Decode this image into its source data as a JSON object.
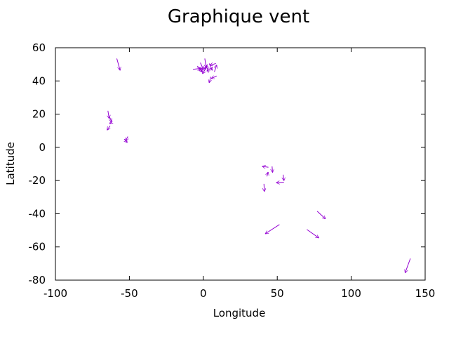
{
  "chart_data": {
    "type": "vector-field",
    "title": "Graphique vent",
    "xlabel": "Longitude",
    "ylabel": "Latitude",
    "xlim": [
      -100,
      150
    ],
    "ylim": [
      -80,
      60
    ],
    "xticks": [
      -100,
      -50,
      0,
      50,
      100,
      150
    ],
    "yticks": [
      -80,
      -60,
      -40,
      -20,
      0,
      20,
      40,
      60
    ],
    "legend": "none",
    "grid": false,
    "vector_color": "#9400d3",
    "vectors": [
      {
        "x": -58.5,
        "y": 53.5,
        "dx": 2.2,
        "dy": -7.0
      },
      {
        "x": -64.5,
        "y": 22.0,
        "dx": 0.8,
        "dy": -4.5
      },
      {
        "x": -63.5,
        "y": 18.5,
        "dx": 1.5,
        "dy": -3.0
      },
      {
        "x": -61.5,
        "y": 15.5,
        "dx": -1.8,
        "dy": -1.2
      },
      {
        "x": -63.0,
        "y": 13.0,
        "dx": -2.0,
        "dy": -2.5
      },
      {
        "x": -53.5,
        "y": 5.0,
        "dx": 2.0,
        "dy": -2.0
      },
      {
        "x": -51.0,
        "y": 6.5,
        "dx": -1.5,
        "dy": -2.5
      },
      {
        "x": -7.0,
        "y": 47.0,
        "dx": 5.0,
        "dy": 0.5
      },
      {
        "x": -4.0,
        "y": 49.0,
        "dx": 3.0,
        "dy": -3.5
      },
      {
        "x": -2.0,
        "y": 51.0,
        "dx": 2.0,
        "dy": -4.0
      },
      {
        "x": 0.0,
        "y": 44.5,
        "dx": -2.5,
        "dy": 3.5
      },
      {
        "x": 1.0,
        "y": 53.5,
        "dx": 1.0,
        "dy": -5.5
      },
      {
        "x": 2.5,
        "y": 48.5,
        "dx": -3.0,
        "dy": -4.0
      },
      {
        "x": 3.5,
        "y": 45.0,
        "dx": -1.5,
        "dy": 4.5
      },
      {
        "x": 4.0,
        "y": 50.5,
        "dx": 2.0,
        "dy": -4.0
      },
      {
        "x": 5.0,
        "y": 42.5,
        "dx": -1.0,
        "dy": -3.5
      },
      {
        "x": 6.0,
        "y": 48.0,
        "dx": -3.5,
        "dy": -2.0
      },
      {
        "x": 7.5,
        "y": 45.5,
        "dx": 1.5,
        "dy": 4.0
      },
      {
        "x": 8.5,
        "y": 50.5,
        "dx": -4.0,
        "dy": -1.0
      },
      {
        "x": 9.0,
        "y": 43.0,
        "dx": -3.5,
        "dy": -1.5
      },
      {
        "x": -1.5,
        "y": 46.0,
        "dx": 3.0,
        "dy": 2.0
      },
      {
        "x": 44.0,
        "y": -12.0,
        "dx": -4.0,
        "dy": 0.5
      },
      {
        "x": 46.5,
        "y": -11.5,
        "dx": 0.3,
        "dy": -3.5
      },
      {
        "x": 43.0,
        "y": -17.5,
        "dx": 0.8,
        "dy": 2.5
      },
      {
        "x": 41.0,
        "y": -22.0,
        "dx": 0.3,
        "dy": -4.5
      },
      {
        "x": 54.5,
        "y": -21.0,
        "dx": -5.0,
        "dy": -0.3
      },
      {
        "x": 54.0,
        "y": -16.5,
        "dx": 0.5,
        "dy": -3.5
      },
      {
        "x": 51.5,
        "y": -46.5,
        "dx": -9.5,
        "dy": -5.5
      },
      {
        "x": 77.0,
        "y": -38.5,
        "dx": 5.5,
        "dy": -4.5
      },
      {
        "x": 70.0,
        "y": -49.5,
        "dx": 8.0,
        "dy": -5.0
      },
      {
        "x": 140.0,
        "y": -67.0,
        "dx": -3.5,
        "dy": -8.5
      }
    ]
  }
}
